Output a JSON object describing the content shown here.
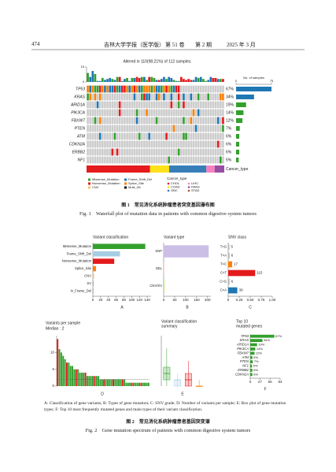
{
  "header": {
    "page_number": "474",
    "journal": "吉林大学学报（医学版）",
    "volume": "第 51 卷",
    "issue": "第 2 期",
    "date": "2025 年 3 月"
  },
  "figure1": {
    "type": "waterfall",
    "altered": "Altered in 110(98.21%) of 112 samples.",
    "total_samples": 112,
    "tmb": {
      "ylim": [
        0,
        15
      ],
      "yticks": [
        0,
        15
      ]
    },
    "genes": [
      "TP53",
      "KRAS",
      "ARID1A",
      "PIK3CA",
      "FBXW7",
      "PTEN",
      "ATM",
      "CDKN2A",
      "ERBB2",
      "NF1"
    ],
    "values": [
      67,
      34,
      19,
      14,
      12,
      7,
      6,
      6,
      6,
      5
    ],
    "value_labels": [
      "67%",
      "34%",
      "19%",
      "14%",
      "12%",
      "7%",
      "6%",
      "6%",
      "6%",
      "5%"
    ],
    "samples_axis": {
      "label": "No. of samples",
      "xlim": [
        0,
        75
      ],
      "xticks": [
        0,
        75
      ]
    },
    "cancer_type_label": "Cancer_type",
    "mutation_legend": {
      "names": [
        "Missense_Mutation",
        "Frame_Shift_Del",
        "Nonsense_Mutation",
        "Splice_Site",
        "CNV",
        "Multi_Hit"
      ],
      "colors": [
        "#33a02c",
        "#1f78b4",
        "#e31a1c",
        "#ff7f00",
        "#fdbf6f",
        "#111111"
      ]
    },
    "cancer_legend": {
      "title": "Cancer_type",
      "names": [
        "CHOL",
        "COAD",
        "GBC",
        "LIHC",
        "PAAD",
        "STAD"
      ],
      "colors": [
        "#e41a1c",
        "#ffe119",
        "#377eb8",
        "#f781bf",
        "#984ea3",
        "#a65628"
      ]
    },
    "caption_cn": "图 1　常见消化系统肿瘤患者突变基因瀑布图",
    "caption_en": "Fig. 1　Waterfall plot of mutation data in patients with common digestive system tumors"
  },
  "figure2": {
    "A": {
      "type": "bar",
      "title": "Variant classification",
      "panel": "A",
      "categories": [
        "Missense_Mutation",
        "Frame_Shift_Del",
        "Nonsense_Mutation",
        "Splice_Site",
        "CNV",
        "SV",
        "In_Frame_Del"
      ],
      "values": [
        135,
        70,
        55,
        8,
        3,
        1,
        1
      ],
      "colors": [
        "#33a02c",
        "#a6cee3",
        "#e31a1c",
        "#ff7f00",
        "#fdbf6f",
        "#6a3d9a",
        "#b15928"
      ],
      "xlim": [
        0,
        150
      ],
      "xticks": [
        0,
        20,
        40,
        60,
        80,
        100,
        120,
        140
      ]
    },
    "B": {
      "type": "bar",
      "title": "Variant type",
      "panel": "B",
      "categories": [
        "SNP",
        "DEL",
        "CNV/SV"
      ],
      "values": [
        205,
        2,
        3
      ],
      "colors": [
        "#cbbfe6",
        "#fbb4ae",
        "#b3de69"
      ],
      "xlim": [
        0,
        215
      ],
      "xticks": [
        0,
        50,
        100,
        150,
        200
      ]
    },
    "C": {
      "type": "bar",
      "title": "SNV class",
      "panel": "C",
      "categories": [
        "T>G",
        "T>A",
        "T>C",
        "C>T",
        "C>G",
        "C>A"
      ],
      "values": [
        0.027,
        0.032,
        0.09,
        0.612,
        0.032,
        0.207
      ],
      "counts": [
        "5",
        "6",
        "17",
        "115",
        "6",
        "39"
      ],
      "colors": [
        "#bbbbbb",
        "#bbbbbb",
        "#ff7f00",
        "#e31a1c",
        "#bbbbbb",
        "#1f78b4"
      ],
      "xlim": [
        0,
        1
      ],
      "xticks": [
        0,
        0.25,
        {
          "value": 0.5,
          "label": "0.50"
        },
        0.75,
        {
          "value": 1,
          "label": "1.00"
        }
      ]
    },
    "D": {
      "type": "bar",
      "title": "Variants per sample",
      "median_label": "Median : 2",
      "median": 2,
      "panel": "D",
      "color": "#33a02c",
      "values": [
        14,
        11,
        10,
        9,
        8,
        7,
        7,
        6,
        6,
        5,
        5,
        5,
        4,
        4,
        4,
        4,
        3,
        3,
        3,
        3,
        3,
        3,
        3,
        2,
        2,
        2,
        2,
        2,
        2,
        2,
        2,
        2,
        2,
        2,
        2,
        2,
        2,
        1,
        1,
        1,
        1,
        1,
        1,
        1,
        1,
        1,
        1,
        1,
        1,
        1
      ],
      "ylim": [
        0,
        15
      ],
      "yticks": [
        0,
        5,
        10
      ]
    },
    "E": {
      "type": "box",
      "title": [
        "Variant classification",
        "summary"
      ],
      "panel": "E",
      "ylim": [
        0,
        8
      ],
      "colors": [
        "#33a02c",
        "#a6cee3",
        "#e31a1c",
        "#ff7f00"
      ],
      "boxes": [
        [
          0,
          1,
          2,
          3,
          6
        ],
        [
          0,
          0,
          1,
          1,
          2
        ],
        [
          0,
          0,
          1,
          2,
          4
        ],
        [
          0,
          0,
          0,
          0,
          1
        ]
      ]
    },
    "F": {
      "type": "bar",
      "title": [
        "Top 10",
        "mutated genes"
      ],
      "panel": "F",
      "categories": [
        "TP53",
        "KRAS",
        "ARID1A",
        "PIK3CA",
        "FBXW7",
        "ATM",
        "PTEN",
        "NF1",
        "ERBB2",
        "CDKN2A"
      ],
      "values": [
        67,
        34,
        19,
        14,
        12,
        6,
        7,
        5,
        6,
        6
      ],
      "value_labels": [
        "67%",
        "34%",
        "19%",
        "14%",
        "12%",
        "6%",
        "7%",
        "5%",
        "6%",
        "6%"
      ],
      "color": "#33a02c",
      "xlim": [
        0,
        83
      ],
      "xticks": [
        0,
        27,
        55,
        83
      ]
    },
    "panel_note": "A: Classification of gene variants; B: Types of gene mutation; C: SNV grade; D: Number of variants per sample; E: Box plot of gene mutation types; F: Top 10 most frequently mutated genes and main types of their variant classification.",
    "caption_cn": "图 2　常见消化系统肿瘤患者基因突变谱",
    "caption_en": "Fig. 2　Gene mutation spectrum of patients with common digestive system tumors"
  }
}
